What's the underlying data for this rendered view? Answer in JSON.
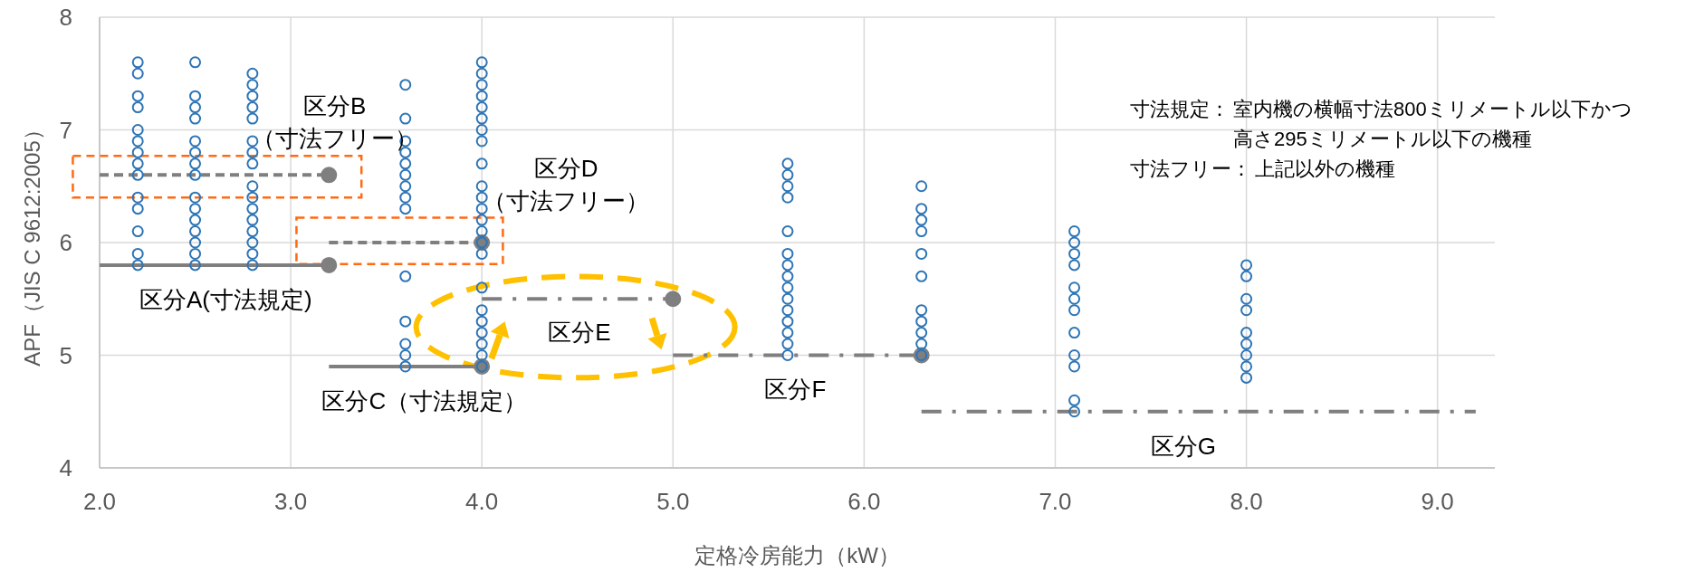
{
  "chart_data": {
    "type": "scatter",
    "xlabel": "定格冷房能力（kW）",
    "ylabel": "APF（JIS C 9612:2005）",
    "xlim": [
      2.0,
      9.3
    ],
    "xticks": [
      {
        "value": 2,
        "label": "2.0"
      },
      {
        "value": 3,
        "label": "3.0"
      },
      {
        "value": 4,
        "label": "4.0"
      },
      {
        "value": 5,
        "label": "5.0"
      },
      {
        "value": 6,
        "label": "6.0"
      },
      {
        "value": 7,
        "label": "7.0"
      },
      {
        "value": 8,
        "label": "8.0"
      },
      {
        "value": 9,
        "label": "9.0"
      }
    ],
    "ylim": [
      4,
      8
    ],
    "yticks": [
      4,
      5,
      6,
      7,
      8
    ],
    "grid": true,
    "series": [
      {
        "marker": "circle",
        "color": "#2e75b6",
        "x": [
          2.2,
          2.2,
          2.2,
          2.2,
          2.2,
          2.2,
          2.2,
          2.2,
          2.2,
          2.2,
          2.2,
          2.2,
          2.2,
          2.2,
          2.5,
          2.5,
          2.5,
          2.5,
          2.5,
          2.5,
          2.5,
          2.5,
          2.5,
          2.5,
          2.5,
          2.5,
          2.5,
          2.5,
          2.5,
          2.8,
          2.8,
          2.8,
          2.8,
          2.8,
          2.8,
          2.8,
          2.8,
          2.8,
          2.8,
          2.8,
          2.8,
          2.8,
          2.8,
          2.8,
          2.8,
          3.6,
          3.6,
          3.6,
          3.6,
          3.6,
          3.6,
          3.6,
          3.6,
          3.6,
          3.6,
          3.6,
          3.6,
          3.6,
          3.6,
          4.0,
          4.0,
          4.0,
          4.0,
          4.0,
          4.0,
          4.0,
          4.0,
          4.0,
          4.0,
          4.0,
          4.0,
          4.0,
          4.0,
          4.0,
          4.0,
          4.0,
          4.0,
          4.0,
          4.0,
          4.0,
          4.0,
          4.0,
          5.6,
          5.6,
          5.6,
          5.6,
          5.6,
          5.6,
          5.6,
          5.6,
          5.6,
          5.6,
          5.6,
          5.6,
          5.6,
          5.6,
          5.6,
          6.3,
          6.3,
          6.3,
          6.3,
          6.3,
          6.3,
          6.3,
          6.3,
          6.3,
          6.3,
          6.3,
          7.1,
          7.1,
          7.1,
          7.1,
          7.1,
          7.1,
          7.1,
          7.1,
          7.1,
          7.1,
          7.1,
          7.1,
          8.0,
          8.0,
          8.0,
          8.0,
          8.0,
          8.0,
          8.0,
          8.0,
          8.0
        ],
        "values": [
          7.6,
          7.5,
          7.3,
          7.2,
          7.0,
          6.9,
          6.8,
          6.7,
          6.6,
          6.4,
          6.3,
          6.1,
          5.9,
          5.8,
          7.6,
          7.3,
          7.2,
          7.1,
          6.9,
          6.8,
          6.7,
          6.6,
          6.4,
          6.3,
          6.2,
          6.1,
          6.0,
          5.9,
          5.8,
          7.5,
          7.4,
          7.3,
          7.2,
          7.1,
          6.9,
          6.8,
          6.7,
          6.5,
          6.4,
          6.3,
          6.2,
          6.1,
          6.0,
          5.9,
          5.8,
          7.4,
          7.1,
          6.9,
          6.8,
          6.7,
          6.6,
          6.5,
          6.4,
          6.3,
          5.7,
          5.3,
          5.1,
          5.0,
          4.9,
          7.6,
          7.5,
          7.4,
          7.3,
          7.2,
          7.1,
          7.0,
          6.9,
          6.7,
          6.5,
          6.4,
          6.3,
          6.2,
          6.1,
          6.0,
          5.9,
          5.6,
          5.4,
          5.3,
          5.2,
          5.1,
          5.0,
          4.9,
          6.7,
          6.6,
          6.5,
          6.4,
          6.1,
          5.9,
          5.8,
          5.7,
          5.6,
          5.5,
          5.4,
          5.3,
          5.2,
          5.1,
          5.0,
          6.5,
          6.3,
          6.2,
          6.1,
          5.9,
          5.7,
          5.4,
          5.3,
          5.2,
          5.1,
          5.0,
          6.1,
          6.0,
          5.9,
          5.8,
          5.6,
          5.5,
          5.4,
          5.2,
          5.0,
          4.9,
          4.6,
          4.5,
          5.8,
          5.7,
          5.5,
          5.4,
          5.2,
          5.1,
          5.0,
          4.9,
          4.8
        ]
      },
      {
        "type": "line",
        "color": "#7f7f7f",
        "line_style": "solid",
        "x": [
          2.0,
          3.2
        ],
        "values": [
          5.8,
          5.8
        ]
      },
      {
        "type": "line",
        "color": "#7f7f7f",
        "line_style": "dashed",
        "x": [
          2.0,
          3.2
        ],
        "values": [
          6.6,
          6.6
        ]
      },
      {
        "type": "line",
        "color": "#7f7f7f",
        "line_style": "solid",
        "x": [
          3.2,
          4.0
        ],
        "values": [
          4.9,
          4.9
        ]
      },
      {
        "type": "line",
        "color": "#7f7f7f",
        "line_style": "dashed",
        "x": [
          3.2,
          4.0
        ],
        "values": [
          6.0,
          6.0
        ]
      },
      {
        "type": "line",
        "color": "#7f7f7f",
        "line_style": "dashdot",
        "x": [
          4.0,
          5.0
        ],
        "values": [
          5.5,
          5.5
        ]
      },
      {
        "type": "line",
        "color": "#7f7f7f",
        "line_style": "dashdot",
        "x": [
          5.0,
          6.3
        ],
        "values": [
          5.0,
          5.0
        ]
      },
      {
        "type": "line",
        "color": "#7f7f7f",
        "line_style": "dashdot",
        "x": [
          6.3,
          9.2
        ],
        "values": [
          4.5,
          4.5
        ]
      },
      {
        "marker": "circle",
        "color": "#7f7f7f",
        "x": [
          3.2,
          3.2,
          4.0,
          4.0,
          5.0,
          6.3
        ],
        "values": [
          5.8,
          6.6,
          4.9,
          6.0,
          5.5,
          5.0
        ]
      }
    ],
    "annotations": [
      "区分A(寸法規定)",
      "区分B\n（寸法フリー）",
      "区分C（寸法規定）",
      "区分D\n（寸法フリー）",
      "区分E",
      "区分F",
      "区分G",
      "寸法規定：室内機の横幅寸法800ミリメートル以下かつ高さ295ミリメートル以下の機種",
      "寸法フリー：上記以外の機種"
    ]
  }
}
